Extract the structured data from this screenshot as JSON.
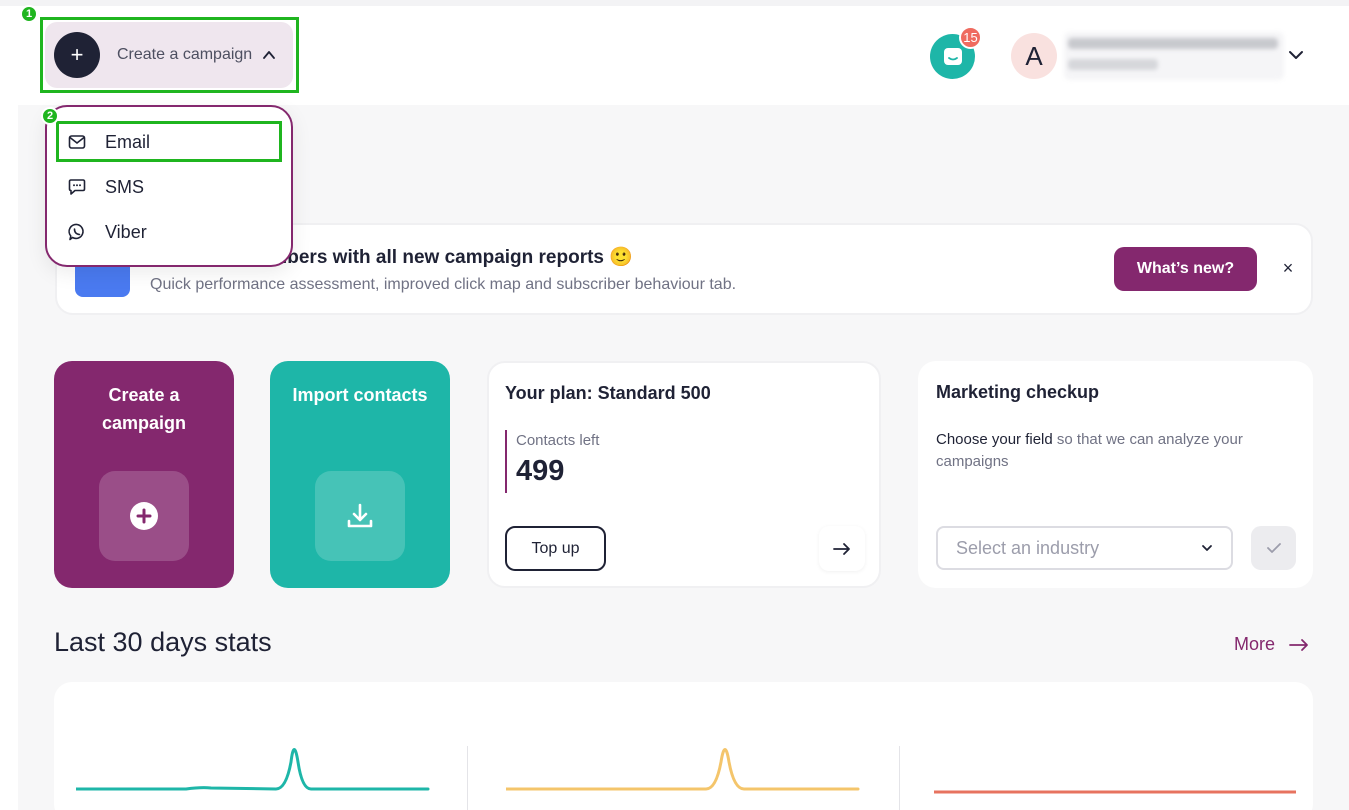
{
  "header": {
    "create_label": "Create a campaign",
    "notifications_count": "15",
    "avatar_letter": "A",
    "marker1": "1",
    "marker2": "2"
  },
  "dropdown": {
    "items": [
      {
        "label": "Email",
        "icon": "envelope-icon"
      },
      {
        "label": "SMS",
        "icon": "chat-bubble-icon"
      },
      {
        "label": "Viber",
        "icon": "viber-icon"
      }
    ]
  },
  "banner": {
    "title": "ut your subscribers with all new campaign reports 🙂",
    "subtitle": "Quick performance assessment, improved click map and subscriber behaviour tab.",
    "button": "What’s new?",
    "close": "×"
  },
  "cards": {
    "create_title": "Create a campaign",
    "import_title": "Import contacts",
    "plan_title": "Your plan: Standard 500",
    "contacts_left_label": "Contacts left",
    "contacts_left_value": "499",
    "topup_label": "Top up",
    "checkup_title": "Marketing checkup",
    "checkup_desc_strong": "Choose your field",
    "checkup_desc_rest": " so that we can analyze your campaigns",
    "industry_placeholder": "Select an industry"
  },
  "stats": {
    "title": "Last 30 days stats",
    "more": "More"
  },
  "colors": {
    "brand": "#84286e",
    "teal": "#1eb6a8",
    "yellow": "#f4c56b",
    "red": "#e7735f",
    "highlight": "#1fb51f"
  }
}
